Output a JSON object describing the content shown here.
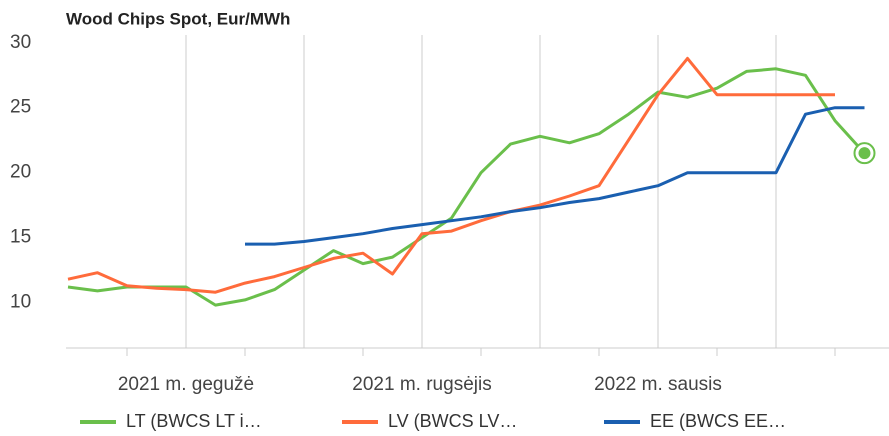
{
  "chart_data": {
    "type": "line",
    "title": "Wood Chips Spot, Eur/MWh",
    "categories": [
      null,
      null,
      null,
      null,
      "2021 m. gegužė",
      null,
      null,
      null,
      null,
      null,
      null,
      null,
      "2021 m. rugsėjis",
      null,
      null,
      null,
      null,
      null,
      null,
      null,
      "2022 m. sausis",
      null,
      null,
      null,
      null,
      null,
      null,
      null
    ],
    "series": [
      {
        "name": "LT (BWCS LT i…",
        "color": "#6abf4b",
        "values": [
          11.2,
          10.9,
          11.2,
          11.2,
          11.2,
          9.8,
          10.2,
          11.0,
          12.5,
          14.0,
          13.0,
          13.5,
          15.0,
          16.5,
          20.0,
          22.2,
          22.8,
          22.3,
          23.0,
          24.5,
          26.2,
          25.8,
          26.5,
          27.8,
          28.0,
          27.5,
          24.0,
          21.5
        ]
      },
      {
        "name": "LV (BWCS LV…",
        "color": "#ff6b3b",
        "values": [
          11.8,
          12.3,
          11.3,
          11.1,
          11.0,
          10.8,
          11.5,
          12.0,
          12.7,
          13.4,
          13.8,
          12.2,
          15.3,
          15.5,
          16.3,
          17.0,
          17.5,
          18.2,
          19.0,
          22.5,
          26.0,
          28.8,
          26.0,
          26.0,
          26.0,
          26.0,
          26.0,
          null
        ]
      },
      {
        "name": "EE (BWCS EE…",
        "color": "#1a5fb0",
        "values": [
          null,
          null,
          null,
          null,
          null,
          null,
          14.5,
          14.5,
          14.7,
          15.0,
          15.3,
          15.7,
          16.0,
          16.3,
          16.6,
          17.0,
          17.3,
          17.7,
          18.0,
          18.5,
          19.0,
          20.0,
          20.0,
          20.0,
          20.0,
          24.5,
          25.0,
          25.0
        ]
      }
    ],
    "ylim": [
      6.5,
      30.6
    ],
    "yticks": [
      10,
      15,
      20,
      25,
      30
    ],
    "grid": true
  }
}
